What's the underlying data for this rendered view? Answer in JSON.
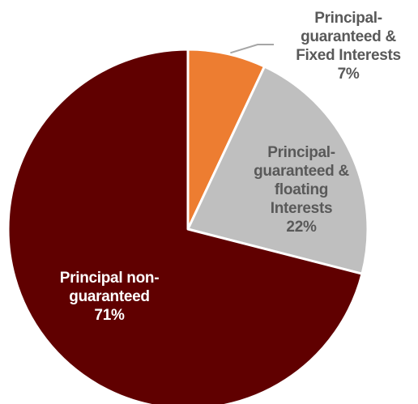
{
  "chart_data": {
    "type": "pie",
    "title": "",
    "start_angle_deg": 0,
    "direction": "clockwise",
    "slices": [
      {
        "label_lines": [
          "Principal-",
          "guaranteed &",
          "Fixed Interests"
        ],
        "value": 7,
        "value_label": "7%",
        "color": "#ed7d31",
        "label_color": "#595959",
        "label_position": "outside-top-right",
        "leader_line": true
      },
      {
        "label_lines": [
          "Principal-",
          "guaranteed &",
          "floating",
          "Interests"
        ],
        "value": 22,
        "value_label": "22%",
        "color": "#bfbfbf",
        "label_color": "#595959",
        "label_position": "inside"
      },
      {
        "label_lines": [
          "Principal non-",
          "guaranteed"
        ],
        "value": 71,
        "value_label": "71%",
        "color": "#600000",
        "label_color": "#ffffff",
        "label_position": "inside"
      }
    ]
  }
}
